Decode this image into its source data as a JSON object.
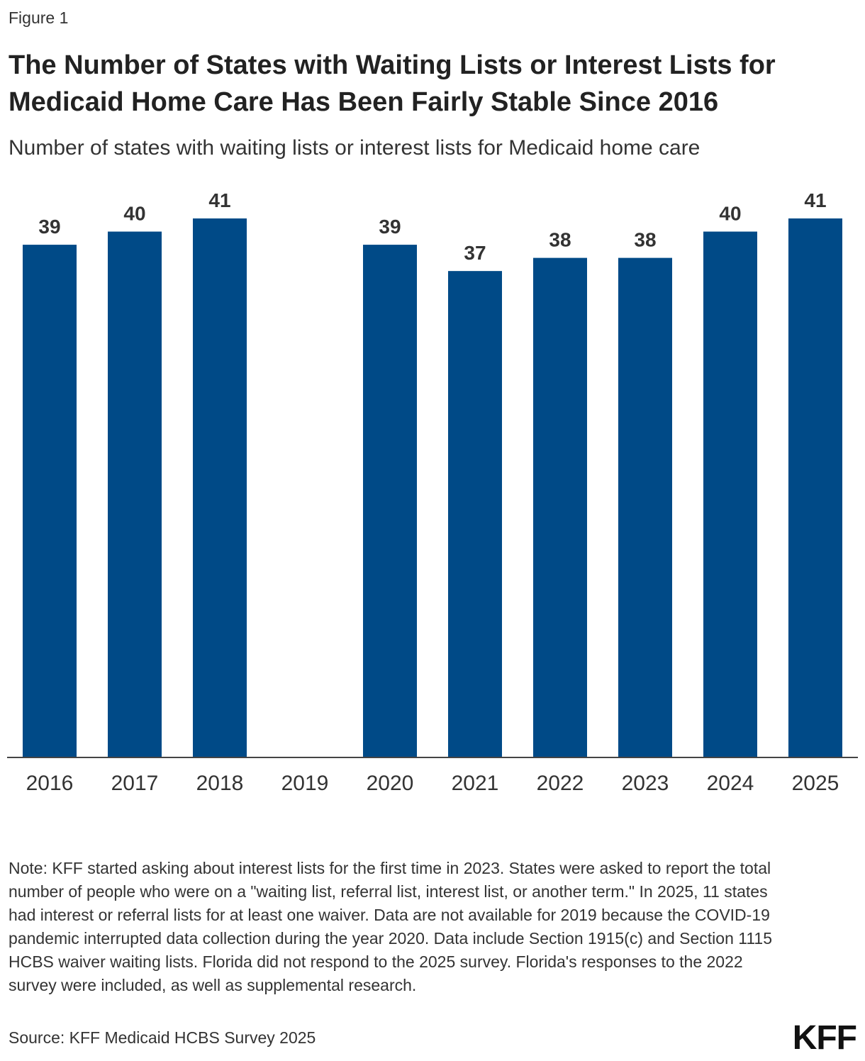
{
  "figure_label": "Figure 1",
  "title": "The Number of States with Waiting Lists or Interest Lists for Medicaid Home Care Has Been Fairly Stable Since 2016",
  "subtitle": "Number of states with waiting lists or interest lists for Medicaid home care",
  "colors": {
    "bar": "#004a87",
    "axis": "#444444"
  },
  "chart_data": {
    "type": "bar",
    "categories": [
      "2016",
      "2017",
      "2018",
      "2019",
      "2020",
      "2021",
      "2022",
      "2023",
      "2024",
      "2025"
    ],
    "values": [
      39,
      40,
      41,
      null,
      39,
      37,
      38,
      38,
      40,
      41
    ],
    "title": "",
    "xlabel": "",
    "ylabel": "",
    "ylim": [
      0,
      41
    ],
    "grid": false,
    "legend": "none",
    "data_labels": true
  },
  "note": "Note: KFF started asking about interest lists for the first time in 2023. States were asked to report the total number of people who were on a \"waiting list, referral list, interest list, or another term.\" In 2025, 11 states had interest or referral lists for at least one waiver. Data are not available for 2019 because the COVID-19 pandemic interrupted data collection during the year 2020. Data include Section 1915(c) and Section 1115 HCBS waiver waiting lists. Florida did not respond to the 2025 survey. Florida's responses to the 2022 survey were included, as well as supplemental research.",
  "source": "Source: KFF Medicaid HCBS Survey 2025",
  "logo_text": "KFF"
}
